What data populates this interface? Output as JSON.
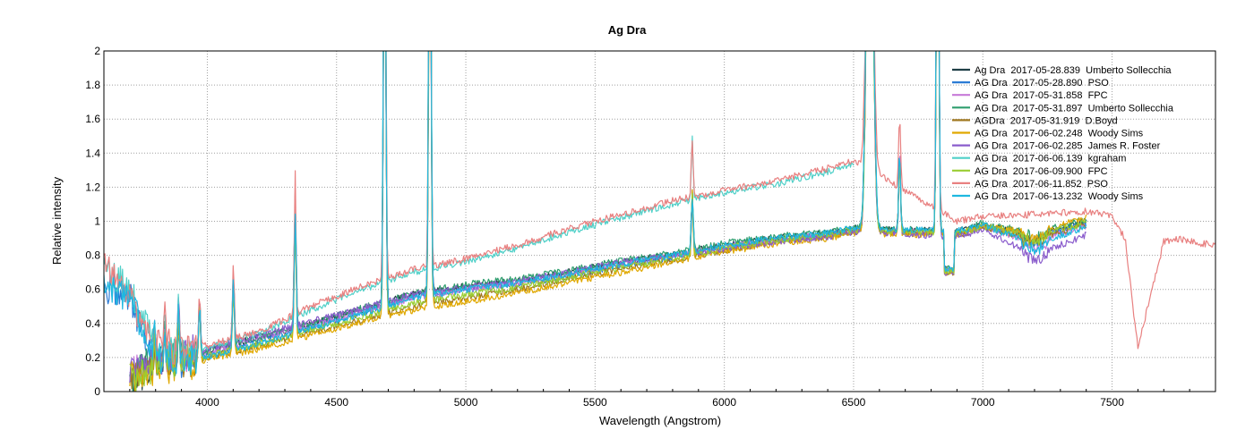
{
  "chart_data": {
    "type": "line",
    "title": "Ag Dra",
    "xlabel": "Wavelength (Angstrom)",
    "ylabel": "Relative intensity",
    "xlim": [
      3600,
      7900
    ],
    "ylim": [
      0,
      2
    ],
    "xticks": [
      "4000",
      "4500",
      "5000",
      "5500",
      "6000",
      "6500",
      "7000",
      "7500"
    ],
    "xtick_values": [
      4000,
      4500,
      5000,
      5500,
      6000,
      6500,
      7000,
      7500
    ],
    "yticks": [
      "0",
      "0.2",
      "0.4",
      "0.6",
      "0.8",
      "1",
      "1.2",
      "1.4",
      "1.6",
      "1.8",
      "2"
    ],
    "ytick_values": [
      0,
      0.2,
      0.4,
      0.6,
      0.8,
      1,
      1.2,
      1.4,
      1.6,
      1.8,
      2
    ],
    "grid": true,
    "legend_position": "top-right",
    "lines": [
      3797,
      3835,
      3889,
      3970,
      4101,
      4340,
      4686,
      4861,
      5876,
      6563,
      6678,
      6825
    ],
    "series": [
      {
        "name": "Ag Dra  2017-05-28.839  Umberto Sollecchia",
        "color": "#1f3f46",
        "group": "low",
        "x": [
          3700,
          3800,
          3900,
          4000,
          4200,
          4400,
          4600,
          4800,
          5000,
          5200,
          5400,
          5600,
          5800,
          6000,
          6200,
          6400,
          6500,
          6900,
          7000,
          7200,
          7400
        ],
        "y": [
          0.05,
          0.17,
          0.2,
          0.24,
          0.32,
          0.4,
          0.48,
          0.58,
          0.62,
          0.65,
          0.7,
          0.76,
          0.8,
          0.86,
          0.9,
          0.93,
          0.96,
          0.94,
          0.98,
          0.92,
          1.0
        ]
      },
      {
        "name": "AG Dra  2017-05-28.890  PSO",
        "color": "#2b7bd5",
        "group": "low",
        "x": [
          3600,
          3700,
          3800,
          3900,
          4000,
          4200,
          4400,
          4600,
          4800,
          5000,
          5200,
          5400,
          5600,
          5800,
          6000,
          6200,
          6400,
          6500,
          6900,
          7000,
          7200,
          7400
        ],
        "y": [
          0.62,
          0.55,
          0.2,
          0.18,
          0.22,
          0.3,
          0.38,
          0.46,
          0.56,
          0.6,
          0.63,
          0.68,
          0.74,
          0.79,
          0.85,
          0.89,
          0.92,
          0.95,
          0.93,
          0.97,
          0.9,
          0.99
        ]
      },
      {
        "name": "AG Dra  2017-05-31.858  FPC",
        "color": "#c77ad8",
        "group": "low",
        "x": [
          3700,
          3800,
          3900,
          4000,
          4200,
          4400,
          4600,
          4800,
          5000,
          5200,
          5400,
          5600,
          5800,
          6000,
          6200,
          6400,
          6500,
          6900,
          7000,
          7200,
          7400
        ],
        "y": [
          0.1,
          0.16,
          0.19,
          0.23,
          0.31,
          0.39,
          0.47,
          0.55,
          0.6,
          0.64,
          0.69,
          0.75,
          0.8,
          0.85,
          0.89,
          0.92,
          0.95,
          0.93,
          0.96,
          0.88,
          0.97
        ]
      },
      {
        "name": "AG Dra  2017-05-31.897  Umberto Sollecchia",
        "color": "#2e9e6e",
        "group": "low",
        "x": [
          3700,
          3800,
          3900,
          4000,
          4200,
          4400,
          4600,
          4800,
          5000,
          5200,
          5400,
          5600,
          5800,
          6000,
          6200,
          6400,
          6500,
          6900,
          7000,
          7200,
          7400
        ],
        "y": [
          0.1,
          0.17,
          0.2,
          0.24,
          0.32,
          0.4,
          0.49,
          0.58,
          0.63,
          0.66,
          0.71,
          0.77,
          0.81,
          0.87,
          0.91,
          0.94,
          0.96,
          0.94,
          0.99,
          0.93,
          1.01
        ]
      },
      {
        "name": "AGDra  2017-05-31.919  D.Boyd",
        "color": "#a07820",
        "group": "low",
        "x": [
          3700,
          3800,
          3900,
          4000,
          4200,
          4400,
          4600,
          4800,
          5000,
          5200,
          5400,
          5600,
          5800,
          6000,
          6200,
          6400,
          6500,
          6900,
          7000,
          7200,
          7400
        ],
        "y": [
          0.08,
          0.14,
          0.17,
          0.2,
          0.27,
          0.35,
          0.42,
          0.5,
          0.55,
          0.6,
          0.66,
          0.72,
          0.77,
          0.83,
          0.88,
          0.91,
          0.94,
          0.92,
          0.96,
          0.9,
          0.98
        ]
      },
      {
        "name": "AG Dra  2017-06-02.248  Woody Sims",
        "color": "#e0a800",
        "group": "low",
        "x": [
          3700,
          3800,
          3900,
          4000,
          4200,
          4400,
          4600,
          4800,
          5000,
          5200,
          5400,
          5600,
          5800,
          6000,
          6200,
          6400,
          6500,
          6900,
          7000,
          7200,
          7400
        ],
        "y": [
          0.08,
          0.13,
          0.16,
          0.19,
          0.25,
          0.33,
          0.41,
          0.48,
          0.53,
          0.58,
          0.64,
          0.7,
          0.76,
          0.82,
          0.87,
          0.9,
          0.93,
          0.92,
          0.97,
          0.93,
          1.02
        ]
      },
      {
        "name": "AG Dra  2017-06-02.285  James R. Foster",
        "color": "#8a5ccc",
        "group": "low",
        "x": [
          3700,
          3800,
          3900,
          4000,
          4200,
          4400,
          4600,
          4800,
          5000,
          5200,
          5400,
          5600,
          5800,
          6000,
          6200,
          6400,
          6500,
          6900,
          7000,
          7200,
          7400
        ],
        "y": [
          0.12,
          0.18,
          0.21,
          0.25,
          0.33,
          0.41,
          0.49,
          0.57,
          0.61,
          0.65,
          0.7,
          0.76,
          0.8,
          0.84,
          0.88,
          0.91,
          0.94,
          0.91,
          0.95,
          0.8,
          0.92
        ]
      },
      {
        "name": "AG Dra  2017-06-06.139  kgraham",
        "color": "#4fd0c8",
        "group": "high",
        "x": [
          3600,
          3700,
          3800,
          3900,
          4000,
          4200,
          4400,
          4600,
          4800,
          5000,
          5200,
          5400,
          5600,
          5800,
          6000,
          6200,
          6400,
          6500
        ],
        "y": [
          0.7,
          0.6,
          0.28,
          0.24,
          0.26,
          0.34,
          0.48,
          0.6,
          0.7,
          0.76,
          0.84,
          0.94,
          1.02,
          1.1,
          1.17,
          1.22,
          1.29,
          1.34
        ]
      },
      {
        "name": "AG Dra  2017-06-09.900  FPC",
        "color": "#9acd32",
        "group": "low",
        "x": [
          3700,
          3800,
          3900,
          4000,
          4200,
          4400,
          4600,
          4800,
          5000,
          5200,
          5400,
          5600,
          5800,
          6000,
          6200,
          6400,
          6500,
          6900,
          7000,
          7200,
          7400
        ],
        "y": [
          0.09,
          0.15,
          0.18,
          0.21,
          0.28,
          0.36,
          0.44,
          0.52,
          0.57,
          0.61,
          0.67,
          0.73,
          0.78,
          0.84,
          0.89,
          0.92,
          0.95,
          0.93,
          0.97,
          0.91,
          0.99
        ]
      },
      {
        "name": "AG Dra  2017-06-11.852  PSO",
        "color": "#e88080",
        "group": "high",
        "x": [
          3600,
          3700,
          3800,
          3900,
          4000,
          4200,
          4400,
          4600,
          4800,
          5000,
          5200,
          5400,
          5600,
          5800,
          6000,
          6200,
          6400,
          6500,
          6900,
          7000,
          7200,
          7400,
          7500,
          7550,
          7600,
          7630,
          7700,
          7750,
          7800,
          7900
        ],
        "y": [
          0.75,
          0.55,
          0.28,
          0.25,
          0.27,
          0.35,
          0.5,
          0.62,
          0.72,
          0.78,
          0.86,
          0.96,
          1.04,
          1.12,
          1.18,
          1.24,
          1.31,
          1.36,
          1.0,
          1.03,
          1.04,
          1.06,
          1.03,
          0.9,
          0.25,
          0.45,
          0.88,
          0.9,
          0.88,
          0.86
        ]
      },
      {
        "name": "AG Dra  2017-06-13.232  Woody Sims",
        "color": "#1eb8e0",
        "group": "low",
        "x": [
          3600,
          3700,
          3800,
          3900,
          4000,
          4200,
          4400,
          4600,
          4800,
          5000,
          5200,
          5400,
          5600,
          5800,
          6000,
          6200,
          6400,
          6500,
          6900,
          7000,
          7200,
          7400
        ],
        "y": [
          0.65,
          0.55,
          0.2,
          0.18,
          0.2,
          0.28,
          0.37,
          0.46,
          0.55,
          0.6,
          0.64,
          0.69,
          0.75,
          0.8,
          0.86,
          0.9,
          0.93,
          0.96,
          0.94,
          0.98,
          0.86,
          0.97
        ]
      }
    ]
  }
}
